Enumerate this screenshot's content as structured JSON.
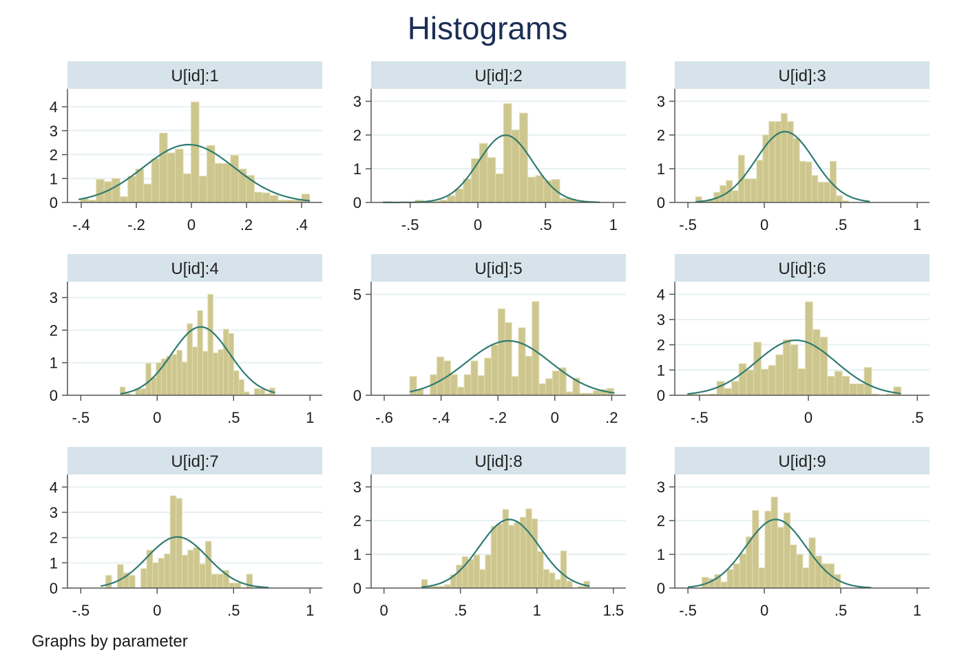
{
  "chart_data": {
    "type": "histogram",
    "title": "Histograms",
    "note": "Graphs by parameter",
    "colors": {
      "bar": "#cdc68e",
      "bar_edge": "#e0dcb0",
      "curve": "#2e7a72",
      "header": "#d6e3ea",
      "grid": "#e6f0f2",
      "title": "#1c2e55"
    },
    "grid": true,
    "overlay": "normal density",
    "panels": [
      {
        "title": "U[id]:1",
        "xlim": [
          -0.45,
          0.475
        ],
        "ylim": [
          0,
          4.75
        ],
        "xticks": [
          -0.4,
          -0.2,
          0,
          0.2,
          0.4
        ],
        "xtick_labels": [
          "-.4",
          "-.2",
          "0",
          ".2",
          ".4"
        ],
        "yticks": [
          0,
          1,
          2,
          3,
          4
        ],
        "ytick_labels": [
          "0",
          "1",
          "2",
          "3",
          "4"
        ],
        "bin_start": -0.403,
        "bin_width": 0.0287,
        "density": [
          0.15,
          0.1,
          0.96,
          0.87,
          1.0,
          0.24,
          1.1,
          1.4,
          0.77,
          1.83,
          2.9,
          2.07,
          2.23,
          1.2,
          4.2,
          1.1,
          2.38,
          1.63,
          1.63,
          1.97,
          1.4,
          1.13,
          0.43,
          0.4,
          0.29,
          0.1,
          0.1,
          0.1,
          0.35
        ],
        "normal": {
          "mean": -0.01,
          "sd": 0.165,
          "range": [
            -0.41,
            0.43
          ]
        }
      },
      {
        "title": "U[id]:2",
        "xlim": [
          -0.788,
          1.093
        ],
        "ylim": [
          0,
          3.37
        ],
        "xticks": [
          -0.5,
          0,
          0.5,
          1
        ],
        "xtick_labels": [
          "-.5",
          "0",
          ".5",
          "1"
        ],
        "yticks": [
          0,
          1,
          2,
          3
        ],
        "ytick_labels": [
          "0",
          "1",
          "2",
          "3"
        ],
        "bin_start": -0.7,
        "bin_width": 0.0593,
        "density": [
          0.03,
          0,
          0,
          0,
          0.07,
          0.02,
          0.03,
          0.07,
          0.2,
          0.4,
          0.7,
          1.3,
          1.75,
          1.33,
          0.85,
          2.93,
          2.15,
          2.65,
          0.75,
          0.8,
          0.65,
          0.68,
          0.12,
          0.1,
          0.03,
          0.02,
          0.02
        ],
        "normal": {
          "mean": 0.205,
          "sd": 0.2,
          "range": [
            -0.7,
            0.9
          ]
        }
      },
      {
        "title": "U[id]:3",
        "xlim": [
          -0.586,
          1.081
        ],
        "ylim": [
          0,
          3.37
        ],
        "xticks": [
          -0.5,
          0,
          0.5,
          1
        ],
        "xtick_labels": [
          "-.5",
          "0",
          ".5",
          "1"
        ],
        "yticks": [
          0,
          1,
          2,
          3
        ],
        "ytick_labels": [
          "0",
          "1",
          "2",
          "3"
        ],
        "bin_start": -0.45,
        "bin_width": 0.04,
        "density": [
          0.17,
          0.03,
          0.1,
          0.3,
          0.5,
          0.65,
          0.35,
          1.4,
          0.7,
          0.7,
          1.25,
          2.0,
          2.4,
          2.4,
          2.64,
          2.4,
          1.9,
          1.22,
          1.2,
          0.8,
          0.6,
          0.6,
          1.22,
          0.2,
          0.05
        ],
        "normal": {
          "mean": 0.135,
          "sd": 0.19,
          "range": [
            -0.45,
            0.69
          ]
        }
      },
      {
        "title": "U[id]:4",
        "xlim": [
          -0.587,
          1.08
        ],
        "ylim": [
          0,
          3.49
        ],
        "xticks": [
          -0.5,
          0,
          0.5,
          1
        ],
        "xtick_labels": [
          "-.5",
          "0",
          ".5",
          "1"
        ],
        "yticks": [
          0,
          1,
          2,
          3
        ],
        "ytick_labels": [
          "0",
          "1",
          "2",
          "3"
        ],
        "bin_start": -0.243,
        "bin_width": 0.0338,
        "density": [
          0.25,
          0.05,
          0,
          0.2,
          0.2,
          0.98,
          0.55,
          1.0,
          1.12,
          1.2,
          1.25,
          1.38,
          1.02,
          2.2,
          1.48,
          2.6,
          1.35,
          3.1,
          1.3,
          1.4,
          2.03,
          1.9,
          0.75,
          0.48,
          0.1,
          0,
          0.2,
          0.18,
          0.05,
          0.22
        ],
        "normal": {
          "mean": 0.285,
          "sd": 0.19,
          "range": [
            -0.24,
            0.77
          ]
        }
      },
      {
        "title": "U[id]:5",
        "xlim": [
          -0.646,
          0.25
        ],
        "ylim": [
          0,
          5.63
        ],
        "xticks": [
          -0.6,
          -0.4,
          -0.2,
          0,
          0.2
        ],
        "xtick_labels": [
          "-.6",
          "-.4",
          "-.2",
          "0",
          ".2"
        ],
        "yticks": [
          0,
          5
        ],
        "ytick_labels": [
          "0",
          "5"
        ],
        "bin_start": -0.51,
        "bin_width": 0.0239,
        "density": [
          0.93,
          0.28,
          0,
          1.02,
          1.9,
          1.7,
          1.02,
          0.4,
          1.02,
          1.7,
          0.97,
          1.84,
          2.5,
          4.28,
          3.6,
          0.93,
          3.34,
          1.93,
          4.64,
          0.57,
          0.82,
          1.2,
          1.36,
          0.17,
          0.85,
          0.1,
          0.1,
          0.23,
          0.28,
          0.34
        ],
        "normal": {
          "mean": -0.163,
          "sd": 0.148,
          "range": [
            -0.51,
            0.21
          ]
        }
      },
      {
        "title": "U[id]:6",
        "xlim": [
          -0.613,
          0.556
        ],
        "ylim": [
          0,
          4.5
        ],
        "xticks": [
          -0.5,
          0,
          0.5
        ],
        "xtick_labels": [
          "-.5",
          "0",
          ".5"
        ],
        "yticks": [
          0,
          1,
          2,
          3,
          4
        ],
        "ytick_labels": [
          "0",
          "1",
          "2",
          "3",
          "4"
        ],
        "bin_start": -0.555,
        "bin_width": 0.0338,
        "density": [
          0.05,
          0.03,
          0.03,
          0.05,
          0.55,
          0.27,
          0.55,
          1.25,
          1.0,
          2.1,
          1.03,
          1.18,
          1.6,
          2.2,
          2.0,
          1.05,
          3.7,
          2.6,
          2.3,
          0.75,
          0.95,
          0.75,
          0.45,
          0.45,
          1.1,
          0.05,
          0,
          0.05,
          0.33
        ],
        "normal": {
          "mean": -0.057,
          "sd": 0.183,
          "range": [
            -0.555,
            0.424
          ]
        }
      },
      {
        "title": "U[id]:7",
        "xlim": [
          -0.587,
          1.08
        ],
        "ylim": [
          0,
          4.5
        ],
        "xticks": [
          -0.5,
          0,
          0.5,
          1
        ],
        "xtick_labels": [
          "-.5",
          "0",
          ".5",
          "1"
        ],
        "yticks": [
          0,
          1,
          2,
          3,
          4
        ],
        "ytick_labels": [
          "0",
          "1",
          "2",
          "3",
          "4"
        ],
        "bin_start": -0.337,
        "bin_width": 0.0384,
        "density": [
          0.5,
          0,
          0.93,
          0.6,
          0.5,
          0,
          0.77,
          1.5,
          1.0,
          1.18,
          1.35,
          3.65,
          3.55,
          1.3,
          1.5,
          1.6,
          0.95,
          1.85,
          0.55,
          0.55,
          0.7,
          0.2,
          0.2,
          0,
          0.55
        ],
        "normal": {
          "mean": 0.132,
          "sd": 0.197,
          "range": [
            -0.37,
            0.73
          ]
        }
      },
      {
        "title": "U[id]:8",
        "xlim": [
          -0.084,
          1.582
        ],
        "ylim": [
          0,
          3.37
        ],
        "xticks": [
          0,
          0.5,
          1,
          1.5
        ],
        "xtick_labels": [
          "0",
          ".5",
          "1",
          "1.5"
        ],
        "yticks": [
          0,
          1,
          2,
          3
        ],
        "ytick_labels": [
          "0",
          "1",
          "2",
          "3"
        ],
        "bin_start": 0.246,
        "bin_width": 0.0379,
        "density": [
          0.25,
          0.05,
          0.05,
          0.05,
          0.1,
          0.4,
          0.68,
          0.93,
          0.85,
          0.98,
          0.55,
          0.98,
          1.83,
          1.9,
          2.33,
          1.86,
          1.95,
          2.1,
          2.35,
          2.05,
          1.08,
          0.55,
          0.45,
          0.25,
          1.1,
          0.2,
          0,
          0.05,
          0.2
        ],
        "normal": {
          "mean": 0.82,
          "sd": 0.196,
          "range": [
            0.246,
            1.345
          ]
        }
      },
      {
        "title": "U[id]:9",
        "xlim": [
          -0.586,
          1.081
        ],
        "ylim": [
          0,
          3.37
        ],
        "xticks": [
          -0.5,
          0,
          0.5,
          1
        ],
        "xtick_labels": [
          "-.5",
          "0",
          ".5",
          "1"
        ],
        "yticks": [
          0,
          1,
          2,
          3
        ],
        "ytick_labels": [
          "0",
          "1",
          "2",
          "3"
        ],
        "bin_start": -0.408,
        "bin_width": 0.0412,
        "density": [
          0.32,
          0.28,
          0.4,
          0.18,
          0.55,
          0.72,
          1.02,
          1.52,
          2.3,
          0.6,
          2.28,
          2.7,
          1.8,
          2.23,
          1.28,
          1.0,
          0.6,
          1.49,
          0.95,
          0.72,
          0.72,
          0.4
        ],
        "normal": {
          "mean": 0.075,
          "sd": 0.196,
          "range": [
            -0.5,
            0.7
          ]
        }
      }
    ]
  }
}
